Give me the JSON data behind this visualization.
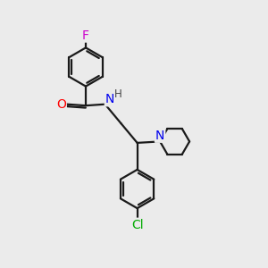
{
  "background_color": "#ebebeb",
  "bond_color": "#1a1a1a",
  "atom_colors": {
    "F": "#cc00cc",
    "O": "#ff0000",
    "N": "#0000ee",
    "Cl": "#00aa00",
    "H": "#444444"
  },
  "figsize": [
    3.0,
    3.0
  ],
  "dpi": 100,
  "lw": 1.6,
  "ring_r": 0.72,
  "pip_r": 0.55
}
